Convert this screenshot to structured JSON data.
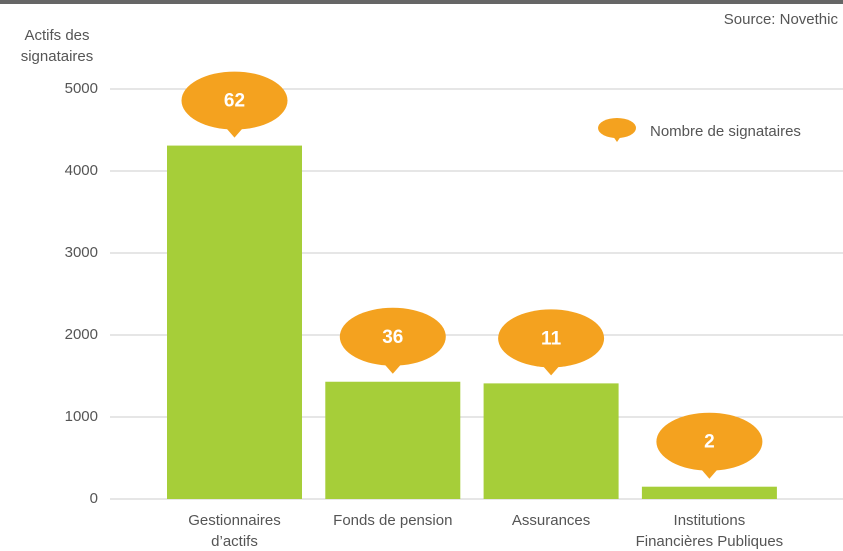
{
  "chart_data": {
    "type": "bar",
    "source": "Source: Novethic",
    "y_label": "Actifs des\nsignataires",
    "categories": [
      "Gestionnaires\nd’actifs",
      "Fonds de pension",
      "Assurances",
      "Institutions\nFinancières Publiques"
    ],
    "values": [
      4310,
      1430,
      1410,
      150
    ],
    "color": "#a6ce39",
    "ylim": [
      0,
      5000
    ],
    "yticks": [
      0,
      1000,
      2000,
      3000,
      4000,
      5000
    ],
    "grid": true,
    "annotations": {
      "name": "Nombre de signataires",
      "color": "#f4a21f",
      "values": [
        62,
        36,
        11,
        2
      ]
    },
    "legend": "top-right"
  }
}
